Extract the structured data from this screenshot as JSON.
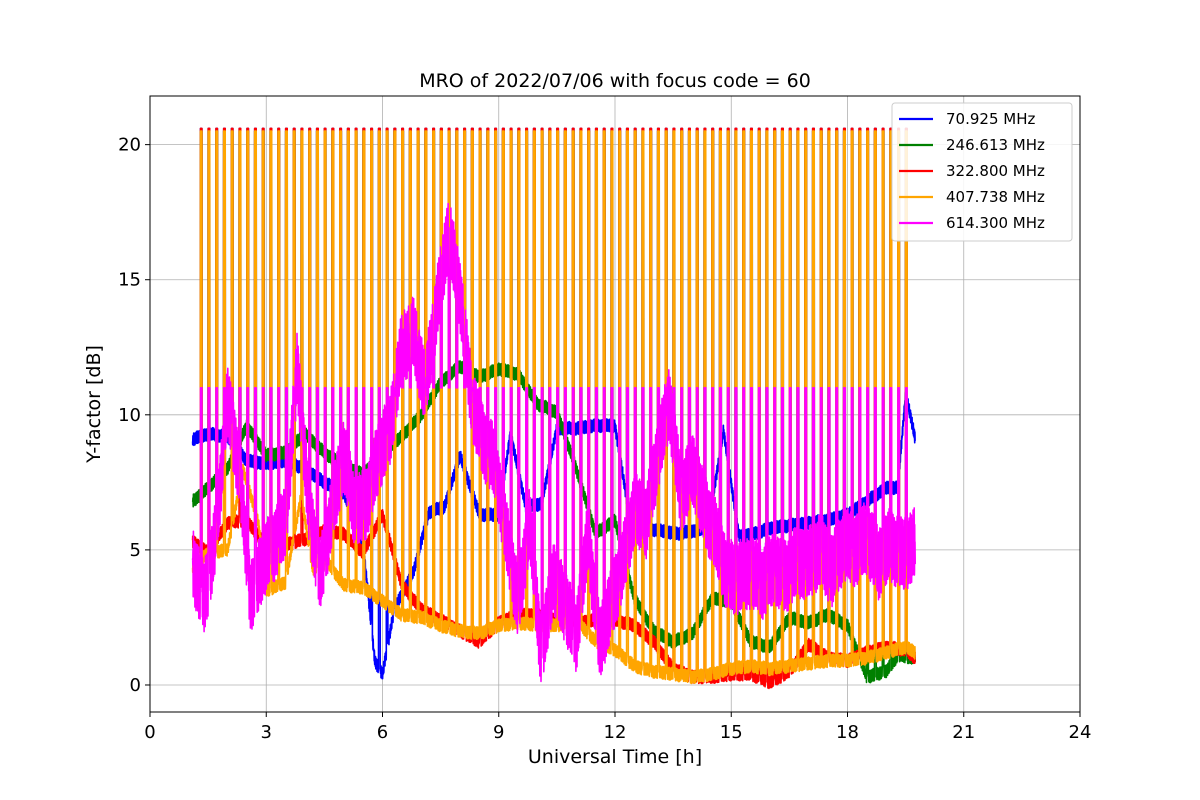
{
  "chart_data": {
    "type": "line",
    "title": "MRO of 2022/07/06 with focus code = 60",
    "xlabel": "Universal Time [h]",
    "ylabel": "Y-factor [dB]",
    "xlim": [
      0,
      24
    ],
    "ylim": [
      -1,
      21.8
    ],
    "xticks": [
      0,
      3,
      6,
      9,
      12,
      15,
      18,
      21,
      24
    ],
    "xtick_labels": [
      "0",
      "3",
      "6",
      "9",
      "12",
      "15",
      "18",
      "21",
      "24"
    ],
    "yticks": [
      0,
      5,
      10,
      15,
      20
    ],
    "ytick_labels": [
      "0",
      "5",
      "10",
      "15",
      "20"
    ],
    "grid": true,
    "legend_position": "top-right",
    "time_range_hours": [
      1.1,
      19.75
    ],
    "calibration_pulse": {
      "start_hour": 1.3,
      "period_hours": 0.2,
      "width_hours": 0.04,
      "count": 92
    },
    "series": [
      {
        "name": " 70.925 MHz",
        "color": "#0000ff",
        "x": [
          1.1,
          1.5,
          2.0,
          2.5,
          3.0,
          3.5,
          4.0,
          4.5,
          5.0,
          5.5,
          5.8,
          6.0,
          6.3,
          6.8,
          7.2,
          7.6,
          8.0,
          8.5,
          9.0,
          9.3,
          9.7,
          10.1,
          10.5,
          11.0,
          11.5,
          12.0,
          12.4,
          12.8,
          13.2,
          13.6,
          14.0,
          14.4,
          14.8,
          15.2,
          15.6,
          16.0,
          16.5,
          17.0,
          17.5,
          18.0,
          18.5,
          19.0,
          19.3,
          19.5,
          19.75
        ],
        "values": [
          9.1,
          9.3,
          9.2,
          8.3,
          8.2,
          8.3,
          8.0,
          7.5,
          7.1,
          5.2,
          0.9,
          0.4,
          2.8,
          4.2,
          6.4,
          6.6,
          8.5,
          6.3,
          6.3,
          9.3,
          6.6,
          6.7,
          9.5,
          9.5,
          9.6,
          9.6,
          6.0,
          5.8,
          5.7,
          5.6,
          5.7,
          5.8,
          9.4,
          5.5,
          5.6,
          5.8,
          5.9,
          6.0,
          6.1,
          6.3,
          6.8,
          7.3,
          7.3,
          10.8,
          9.1
        ]
      },
      {
        "name": "246.613 MHz",
        "color": "#008000",
        "x": [
          1.1,
          1.5,
          2.0,
          2.5,
          3.0,
          3.5,
          4.0,
          4.5,
          5.0,
          5.5,
          6.0,
          6.5,
          7.0,
          7.5,
          8.0,
          8.5,
          9.0,
          9.5,
          10.0,
          10.5,
          11.0,
          11.5,
          12.0,
          12.5,
          13.0,
          13.5,
          14.0,
          14.5,
          15.0,
          15.5,
          16.0,
          16.5,
          17.0,
          17.5,
          18.0,
          18.5,
          19.0,
          19.3,
          19.75
        ],
        "values": [
          6.8,
          7.3,
          8.0,
          9.6,
          8.5,
          8.6,
          9.3,
          8.6,
          8.1,
          7.8,
          8.6,
          9.2,
          10.0,
          11.2,
          11.8,
          11.4,
          11.7,
          11.5,
          10.4,
          10.1,
          8.0,
          5.6,
          6.1,
          3.2,
          2.0,
          1.6,
          1.9,
          3.2,
          3.1,
          1.6,
          1.4,
          2.5,
          2.3,
          2.6,
          2.2,
          0.3,
          0.5,
          1.1,
          1.0
        ]
      },
      {
        "name": "322.800 MHz",
        "color": "#ff0000",
        "x": [
          1.1,
          1.5,
          2.0,
          2.5,
          3.0,
          3.5,
          4.0,
          4.5,
          5.0,
          5.5,
          6.0,
          6.5,
          7.0,
          7.5,
          8.0,
          8.5,
          9.0,
          9.5,
          10.0,
          10.5,
          11.0,
          11.5,
          12.0,
          12.5,
          13.0,
          13.5,
          14.0,
          14.5,
          15.0,
          15.5,
          16.0,
          16.5,
          17.0,
          17.5,
          18.0,
          18.5,
          19.0,
          19.5,
          19.75
        ],
        "values": [
          5.3,
          4.9,
          6.0,
          6.1,
          5.1,
          5.2,
          5.4,
          5.7,
          5.6,
          4.9,
          6.3,
          3.7,
          2.8,
          2.4,
          2.0,
          1.6,
          2.3,
          2.6,
          2.6,
          2.4,
          2.3,
          2.4,
          2.4,
          2.2,
          1.6,
          0.6,
          0.3,
          0.3,
          0.4,
          0.4,
          0.1,
          0.5,
          1.5,
          1.0,
          0.9,
          1.2,
          1.4,
          1.3,
          1.0
        ]
      },
      {
        "name": "407.738 MHz",
        "color": "#ffa500",
        "x": [
          1.1,
          1.5,
          2.0,
          2.4,
          2.8,
          3.0,
          3.5,
          3.9,
          4.2,
          4.6,
          5.0,
          5.5,
          6.0,
          6.5,
          7.0,
          7.5,
          8.0,
          8.5,
          9.0,
          9.5,
          10.0,
          10.5,
          11.0,
          11.5,
          12.0,
          12.5,
          13.0,
          13.5,
          14.0,
          14.5,
          15.0,
          15.5,
          16.0,
          16.5,
          17.0,
          17.5,
          18.0,
          18.5,
          19.0,
          19.5,
          19.75
        ],
        "values": [
          4.4,
          4.9,
          5.0,
          8.0,
          6.0,
          3.5,
          3.8,
          7.0,
          4.3,
          4.5,
          3.7,
          3.6,
          3.1,
          2.6,
          2.5,
          2.2,
          2.0,
          1.9,
          2.2,
          2.3,
          2.2,
          2.2,
          2.4,
          1.6,
          1.3,
          0.7,
          0.5,
          0.4,
          0.3,
          0.4,
          0.6,
          0.7,
          0.6,
          0.7,
          0.8,
          0.9,
          0.9,
          1.0,
          1.2,
          1.4,
          1.2
        ]
      },
      {
        "name": "614.300 MHz",
        "color": "#ff00ff",
        "x": [
          1.1,
          1.4,
          1.7,
          2.0,
          2.3,
          2.6,
          2.9,
          3.2,
          3.5,
          3.8,
          4.1,
          4.4,
          4.7,
          5.0,
          5.3,
          5.6,
          5.9,
          6.2,
          6.5,
          6.8,
          7.1,
          7.4,
          7.7,
          8.0,
          8.3,
          8.6,
          8.9,
          9.2,
          9.5,
          9.8,
          10.1,
          10.4,
          10.7,
          11.0,
          11.3,
          11.6,
          11.9,
          12.2,
          12.5,
          12.8,
          13.1,
          13.4,
          13.7,
          14.0,
          14.3,
          14.6,
          14.9,
          15.2,
          15.5,
          15.8,
          16.1,
          16.4,
          16.7,
          17.0,
          17.3,
          17.6,
          17.9,
          18.2,
          18.5,
          18.8,
          19.1,
          19.4,
          19.75
        ],
        "values": [
          4.5,
          3.2,
          5.5,
          10.5,
          8.0,
          3.2,
          4.5,
          5.2,
          6.0,
          11.8,
          6.5,
          4.0,
          6.5,
          8.5,
          6.3,
          6.8,
          8.5,
          9.5,
          12.5,
          13.0,
          11.0,
          14.0,
          16.8,
          14.5,
          10.5,
          9.0,
          8.2,
          5.5,
          3.0,
          6.0,
          1.0,
          4.0,
          3.0,
          1.8,
          5.5,
          1.5,
          3.0,
          4.5,
          6.5,
          6.0,
          8.5,
          10.5,
          7.0,
          8.0,
          6.5,
          5.5,
          4.0,
          4.0,
          4.2,
          3.8,
          4.3,
          4.0,
          4.6,
          4.5,
          5.0,
          4.2,
          5.2,
          5.0,
          5.5,
          4.5,
          5.2,
          4.8,
          5.2
        ]
      }
    ]
  }
}
